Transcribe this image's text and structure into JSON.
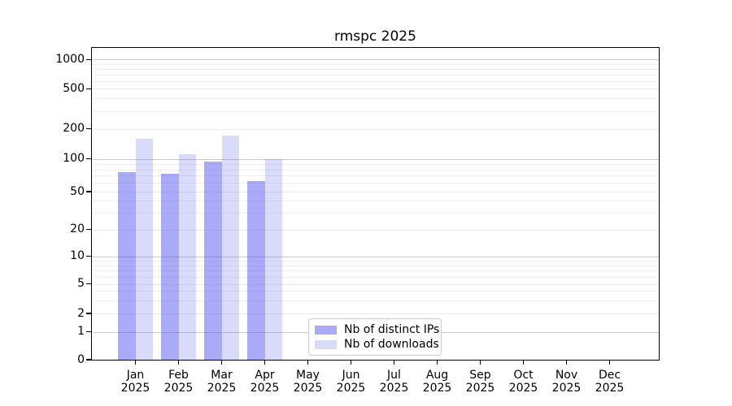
{
  "chart_data": {
    "type": "bar",
    "title": "rmspc 2025",
    "y_scale": "symlog",
    "ylim": [
      0,
      1000
    ],
    "grid": "on",
    "y_ticks": [
      0,
      1,
      2,
      5,
      10,
      20,
      50,
      100,
      200,
      500,
      1000
    ],
    "y_minor_multiples": [
      3,
      4,
      6,
      7,
      8,
      9
    ],
    "categories": [
      "Jan",
      "Feb",
      "Mar",
      "Apr",
      "May",
      "Jun",
      "Jul",
      "Aug",
      "Sep",
      "Oct",
      "Nov",
      "Dec"
    ],
    "year": "2025",
    "series": [
      {
        "name": "Nb of distinct IPs",
        "color": "rgba(85,85,238,0.5)",
        "values": [
          75,
          73,
          94,
          62,
          null,
          null,
          null,
          null,
          null,
          null,
          null,
          null
        ]
      },
      {
        "name": "Nb of downloads",
        "color": "rgba(85,85,238,0.22)",
        "values": [
          160,
          112,
          170,
          100,
          null,
          null,
          null,
          null,
          null,
          null,
          null,
          null
        ]
      }
    ],
    "legend": {
      "position": "lower-center",
      "entries": [
        "Nb of distinct IPs",
        "Nb of downloads"
      ]
    },
    "colors": {
      "major_grid": "#c9c9c9",
      "mid_grid": "#eaeaea",
      "minor_grid": "#f0f0f0",
      "axis": "#000000"
    }
  }
}
